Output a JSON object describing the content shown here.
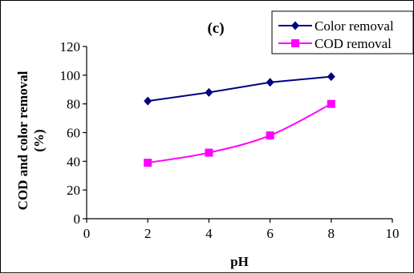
{
  "chart_data": {
    "type": "line",
    "title": "(c)",
    "xlabel": "pH",
    "ylabel": "COD and color removal (%)",
    "ylabel_lines": [
      "COD and color removal",
      "(%)"
    ],
    "xlim": [
      0,
      10
    ],
    "ylim": [
      0,
      120
    ],
    "xticks": [
      0,
      2,
      4,
      6,
      8,
      10
    ],
    "yticks": [
      0,
      20,
      40,
      60,
      80,
      100,
      120
    ],
    "grid": false,
    "legend_position": "top-right",
    "series": [
      {
        "name": "Color removal",
        "color": "#000080",
        "marker": "diamond",
        "x": [
          2,
          4,
          6,
          8
        ],
        "y": [
          82,
          88,
          95,
          99
        ]
      },
      {
        "name": "COD removal",
        "color": "#ff00ff",
        "marker": "square",
        "x": [
          2,
          4,
          6,
          8
        ],
        "y": [
          39,
          46,
          58,
          80
        ]
      }
    ]
  }
}
